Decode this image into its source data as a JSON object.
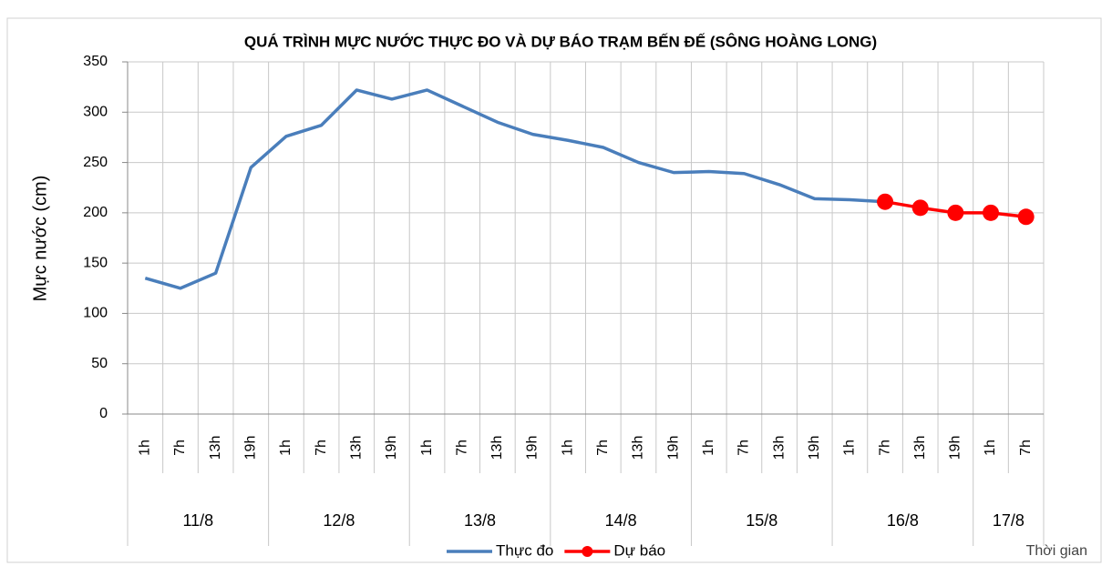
{
  "chart_data": {
    "type": "line",
    "title": "QUÁ TRÌNH MỰC NƯỚC THỰC ĐO VÀ DỰ BÁO TRẠM BẾN ĐẾ (SÔNG HOÀNG LONG)",
    "y_label": "Mực nước (cm)",
    "x_label": "Thời gian",
    "categories": [
      "1h",
      "7h",
      "13h",
      "19h",
      "1h",
      "7h",
      "13h",
      "19h",
      "1h",
      "7h",
      "13h",
      "19h",
      "1h",
      "7h",
      "13h",
      "19h",
      "1h",
      "7h",
      "13h",
      "19h",
      "1h",
      "7h",
      "13h",
      "19h",
      "1h",
      "7h"
    ],
    "category_groups": [
      "11/8",
      "11/8",
      "11/8",
      "11/8",
      "12/8",
      "12/8",
      "12/8",
      "12/8",
      "13/8",
      "13/8",
      "13/8",
      "13/8",
      "14/8",
      "14/8",
      "14/8",
      "14/8",
      "15/8",
      "15/8",
      "15/8",
      "15/8",
      "16/8",
      "16/8",
      "16/8",
      "16/8",
      "17/8",
      "17/8"
    ],
    "series": [
      {
        "name": "Thực đo",
        "color": "#4a7ebb",
        "markers": false,
        "values": [
          135,
          125,
          140,
          245,
          276,
          287,
          322,
          313,
          322,
          306,
          290,
          278,
          272,
          265,
          250,
          240,
          241,
          239,
          228,
          214,
          213,
          211,
          null,
          null,
          null,
          null
        ]
      },
      {
        "name": "Dự báo",
        "color": "#ff0000",
        "markers": true,
        "values": [
          null,
          null,
          null,
          null,
          null,
          null,
          null,
          null,
          null,
          null,
          null,
          null,
          null,
          null,
          null,
          null,
          null,
          null,
          null,
          null,
          null,
          211,
          205,
          200,
          200,
          196
        ]
      }
    ],
    "ylim": [
      0,
      350
    ],
    "yticks": [
      0,
      50,
      100,
      150,
      200,
      250,
      300,
      350
    ],
    "grid": true
  }
}
